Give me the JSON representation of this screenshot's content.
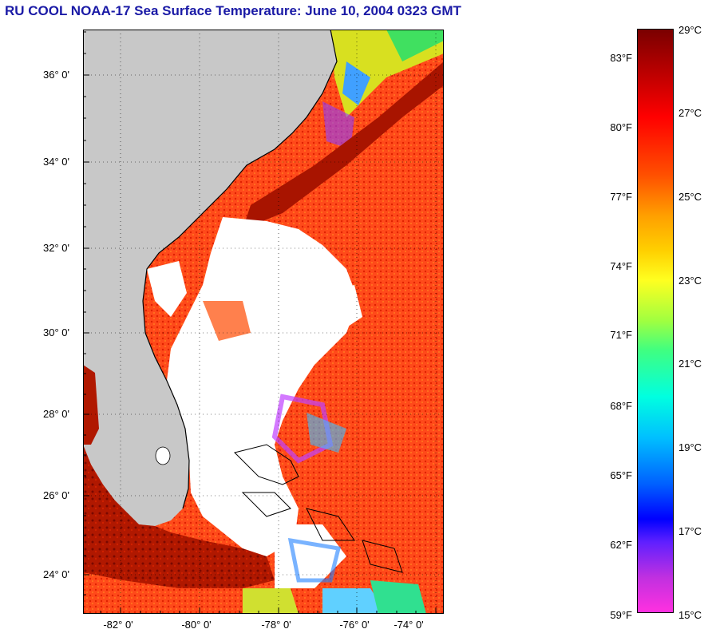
{
  "title": "RU COOL  NOAA-17  Sea Surface Temperature:  June 10, 2004 0323 GMT",
  "lat_labels": [
    "36° 0'",
    "34° 0'",
    "32° 0'",
    "30° 0'",
    "28° 0'",
    "26° 0'",
    "24° 0'"
  ],
  "lon_labels": [
    "-82° 0'",
    "-80° 0'",
    "-78° 0'",
    "-76° 0'",
    "-74° 0'"
  ],
  "colorbar": {
    "fahrenheit": [
      "83°F",
      "80°F",
      "77°F",
      "74°F",
      "71°F",
      "68°F",
      "65°F",
      "62°F",
      "59°F"
    ],
    "celsius": [
      "29°C",
      "27°C",
      "25°C",
      "23°C",
      "21°C",
      "19°C",
      "17°C",
      "15°C"
    ]
  },
  "colors": {
    "land": "#c8c8c8",
    "cloud": "#ffffff",
    "title": "#1a1aa6",
    "warm": "#ff3a10",
    "hot": "#a01000"
  }
}
